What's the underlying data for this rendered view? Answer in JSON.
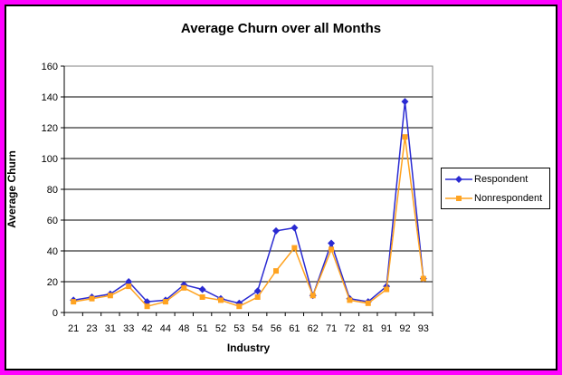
{
  "colors": {
    "frame": "#ff00ff",
    "inner_border": "#000000",
    "background": "#ffffff",
    "plot_border": "#808080",
    "gridline": "#000000",
    "axis": "#000000",
    "respondent": "#2a2ad2",
    "nonrespondent": "#ffa320"
  },
  "chart_data": {
    "type": "line",
    "title": "Average Churn over all Months",
    "xlabel": "Industry",
    "ylabel": "Average Churn",
    "categories": [
      "21",
      "23",
      "31",
      "33",
      "42",
      "44",
      "48",
      "51",
      "52",
      "53",
      "54",
      "56",
      "61",
      "62",
      "71",
      "72",
      "81",
      "91",
      "92",
      "93"
    ],
    "series": [
      {
        "name": "Respondent",
        "color": "#2a2ad2",
        "marker": "diamond",
        "values": [
          8,
          10,
          12,
          20,
          7,
          8,
          18,
          15,
          9,
          6,
          14,
          53,
          55,
          11,
          45,
          9,
          7,
          17,
          137,
          22
        ]
      },
      {
        "name": "Nonrespondent",
        "color": "#ffa320",
        "marker": "square",
        "values": [
          7,
          9,
          11,
          17,
          4,
          7,
          16,
          10,
          8,
          4,
          10,
          27,
          42,
          11,
          41,
          8,
          6,
          15,
          114,
          22
        ]
      }
    ],
    "y_axis": {
      "min": 0,
      "max": 160,
      "step": 20,
      "tick_labels": [
        "0",
        "20",
        "40",
        "60",
        "80",
        "100",
        "120",
        "140",
        "160"
      ]
    },
    "grid": true,
    "legend_position": "right"
  }
}
